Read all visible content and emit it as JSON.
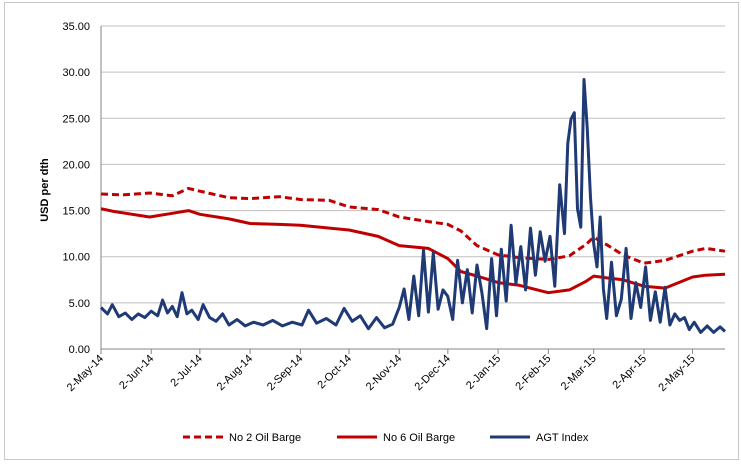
{
  "chart_data": {
    "type": "line",
    "title": "",
    "xlabel": "",
    "ylabel": "USD per dth",
    "ylim": [
      0,
      35
    ],
    "y_ticks": [
      "0.00",
      "5.00",
      "10.00",
      "15.00",
      "20.00",
      "25.00",
      "30.00",
      "35.00"
    ],
    "x_ticks": [
      "2-May-14",
      "2-Jun-14",
      "2-Jul-14",
      "2-Aug-14",
      "2-Sep-14",
      "2-Oct-14",
      "2-Nov-14",
      "2-Dec-14",
      "2-Jan-15",
      "2-Feb-15",
      "2-Mar-15",
      "2-Apr-15",
      "2-May-15"
    ],
    "x_range": [
      "2014-05-02",
      "2015-05-22"
    ],
    "grid": "horizontal",
    "legend": "bottom",
    "series": [
      {
        "name": "No 2 Oil Barge",
        "color": "#c00000",
        "style": "dashed",
        "x": [
          "2014-05-02",
          "2014-05-15",
          "2014-06-01",
          "2014-06-15",
          "2014-06-25",
          "2014-07-02",
          "2014-07-20",
          "2014-08-02",
          "2014-08-20",
          "2014-09-02",
          "2014-09-20",
          "2014-10-02",
          "2014-10-20",
          "2014-11-02",
          "2014-11-20",
          "2014-12-02",
          "2014-12-10",
          "2014-12-20",
          "2015-01-02",
          "2015-01-15",
          "2015-02-02",
          "2015-02-15",
          "2015-02-25",
          "2015-03-02",
          "2015-03-10",
          "2015-03-20",
          "2015-04-02",
          "2015-04-15",
          "2015-05-02",
          "2015-05-10",
          "2015-05-22"
        ],
        "y": [
          16.8,
          16.7,
          16.9,
          16.6,
          17.4,
          17.1,
          16.4,
          16.3,
          16.5,
          16.2,
          16.1,
          15.4,
          15.1,
          14.3,
          13.8,
          13.5,
          12.8,
          11.2,
          10.2,
          9.9,
          9.7,
          10.1,
          11.3,
          12.1,
          11.3,
          10.2,
          9.3,
          9.6,
          10.6,
          10.9,
          10.6
        ]
      },
      {
        "name": "No 6 Oil Barge",
        "color": "#c00000",
        "style": "solid",
        "x": [
          "2014-05-02",
          "2014-05-10",
          "2014-06-01",
          "2014-06-15",
          "2014-06-25",
          "2014-07-02",
          "2014-07-20",
          "2014-08-02",
          "2014-08-20",
          "2014-09-02",
          "2014-09-20",
          "2014-10-02",
          "2014-10-20",
          "2014-11-02",
          "2014-11-20",
          "2014-12-02",
          "2014-12-10",
          "2014-12-20",
          "2015-01-02",
          "2015-01-15",
          "2015-02-02",
          "2015-02-15",
          "2015-02-25",
          "2015-03-02",
          "2015-03-10",
          "2015-03-20",
          "2015-04-02",
          "2015-04-15",
          "2015-05-02",
          "2015-05-10",
          "2015-05-22"
        ],
        "y": [
          15.2,
          14.9,
          14.3,
          14.7,
          15.0,
          14.6,
          14.1,
          13.6,
          13.5,
          13.4,
          13.1,
          12.9,
          12.2,
          11.2,
          10.9,
          9.8,
          8.4,
          7.9,
          7.2,
          6.9,
          6.1,
          6.4,
          7.3,
          7.9,
          7.7,
          7.5,
          6.8,
          6.6,
          7.8,
          8.0,
          8.1
        ]
      },
      {
        "name": "AGT Index",
        "color": "#1f3a75",
        "style": "solid",
        "x": [
          "2014-05-02",
          "2014-05-06",
          "2014-05-09",
          "2014-05-13",
          "2014-05-17",
          "2014-05-21",
          "2014-05-25",
          "2014-05-29",
          "2014-06-02",
          "2014-06-06",
          "2014-06-09",
          "2014-06-12",
          "2014-06-15",
          "2014-06-18",
          "2014-06-21",
          "2014-06-24",
          "2014-06-27",
          "2014-07-01",
          "2014-07-04",
          "2014-07-08",
          "2014-07-12",
          "2014-07-16",
          "2014-07-20",
          "2014-07-25",
          "2014-07-30",
          "2014-08-04",
          "2014-08-10",
          "2014-08-16",
          "2014-08-22",
          "2014-08-28",
          "2014-09-03",
          "2014-09-07",
          "2014-09-12",
          "2014-09-18",
          "2014-09-24",
          "2014-09-29",
          "2014-10-04",
          "2014-10-09",
          "2014-10-14",
          "2014-10-19",
          "2014-10-24",
          "2014-10-29",
          "2014-11-02",
          "2014-11-05",
          "2014-11-08",
          "2014-11-11",
          "2014-11-14",
          "2014-11-17",
          "2014-11-20",
          "2014-11-23",
          "2014-11-26",
          "2014-11-29",
          "2014-12-02",
          "2014-12-05",
          "2014-12-08",
          "2014-12-11",
          "2014-12-14",
          "2014-12-17",
          "2014-12-20",
          "2014-12-23",
          "2014-12-26",
          "2014-12-29",
          "2015-01-01",
          "2015-01-04",
          "2015-01-07",
          "2015-01-10",
          "2015-01-13",
          "2015-01-16",
          "2015-01-19",
          "2015-01-22",
          "2015-01-25",
          "2015-01-28",
          "2015-01-31",
          "2015-02-03",
          "2015-02-06",
          "2015-02-09",
          "2015-02-12",
          "2015-02-14",
          "2015-02-16",
          "2015-02-18",
          "2015-02-20",
          "2015-02-22",
          "2015-02-24",
          "2015-02-26",
          "2015-02-28",
          "2015-03-02",
          "2015-03-04",
          "2015-03-06",
          "2015-03-08",
          "2015-03-10",
          "2015-03-13",
          "2015-03-16",
          "2015-03-19",
          "2015-03-22",
          "2015-03-25",
          "2015-03-28",
          "2015-03-31",
          "2015-04-03",
          "2015-04-06",
          "2015-04-09",
          "2015-04-12",
          "2015-04-15",
          "2015-04-18",
          "2015-04-21",
          "2015-04-24",
          "2015-04-27",
          "2015-04-30",
          "2015-05-03",
          "2015-05-07",
          "2015-05-11",
          "2015-05-15",
          "2015-05-19",
          "2015-05-22"
        ],
        "y": [
          4.5,
          3.8,
          4.8,
          3.5,
          3.9,
          3.2,
          3.8,
          3.4,
          4.1,
          3.6,
          5.3,
          3.9,
          4.6,
          3.5,
          6.1,
          3.8,
          4.2,
          3.2,
          4.8,
          3.4,
          3.0,
          3.8,
          2.6,
          3.2,
          2.5,
          2.9,
          2.6,
          3.1,
          2.5,
          2.9,
          2.6,
          4.2,
          2.8,
          3.3,
          2.6,
          4.4,
          3.0,
          3.6,
          2.2,
          3.4,
          2.3,
          2.7,
          4.5,
          6.5,
          3.2,
          7.9,
          3.6,
          10.7,
          4.0,
          10.4,
          4.3,
          6.4,
          5.7,
          3.2,
          9.6,
          5.0,
          8.6,
          3.9,
          9.1,
          6.1,
          2.2,
          9.8,
          3.6,
          10.8,
          5.2,
          13.4,
          7.1,
          11.1,
          6.4,
          13.1,
          8.0,
          12.7,
          9.5,
          12.2,
          6.8,
          17.8,
          12.5,
          22.3,
          24.9,
          25.6,
          15.2,
          13.2,
          29.2,
          24.0,
          16.4,
          11.4,
          8.9,
          14.3,
          6.5,
          3.3,
          9.4,
          3.6,
          5.4,
          10.9,
          3.3,
          7.2,
          4.5,
          8.9,
          3.1,
          6.2,
          2.9,
          6.7,
          2.6,
          3.8,
          3.1,
          3.4,
          2.1,
          2.9,
          1.8,
          2.5,
          1.8,
          2.4,
          1.9
        ]
      }
    ]
  }
}
